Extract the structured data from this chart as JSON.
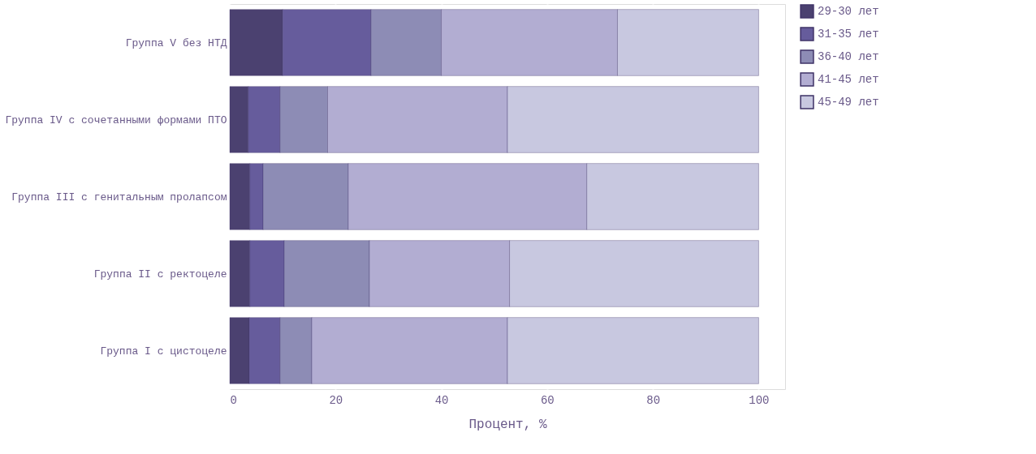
{
  "chart_data": {
    "type": "bar",
    "orientation": "horizontal",
    "stacked": true,
    "xlabel": "Процент, %",
    "categories": [
      "Группа V без НТД",
      "Группа IV с сочетанными формами ПТО",
      "Группа III с генитальным пролапсом",
      "Группа II с ректоцеле",
      "Группа I с цистоцеле"
    ],
    "series": [
      {
        "name": "29-30 лет",
        "color": "#4b4170",
        "values": [
          10.0,
          3.5,
          3.8,
          3.8,
          3.7
        ]
      },
      {
        "name": "31-35 лет",
        "color": "#665c9c",
        "values": [
          16.7,
          6.0,
          2.5,
          6.5,
          5.8
        ]
      },
      {
        "name": "36-40 лет",
        "color": "#8d8cb5",
        "values": [
          13.3,
          9.0,
          16.1,
          16.1,
          6.0
        ]
      },
      {
        "name": "41-45 лет",
        "color": "#b2add2",
        "values": [
          33.3,
          34.0,
          45.1,
          26.5,
          37.0
        ]
      },
      {
        "name": "45-49 лет",
        "color": "#c8c8e0",
        "values": [
          26.7,
          47.5,
          32.5,
          47.1,
          47.5
        ]
      }
    ],
    "xlim": [
      0,
      105
    ],
    "xticks": [
      0,
      20,
      40,
      60,
      80,
      100
    ],
    "grid": "x",
    "legend": "top right"
  }
}
